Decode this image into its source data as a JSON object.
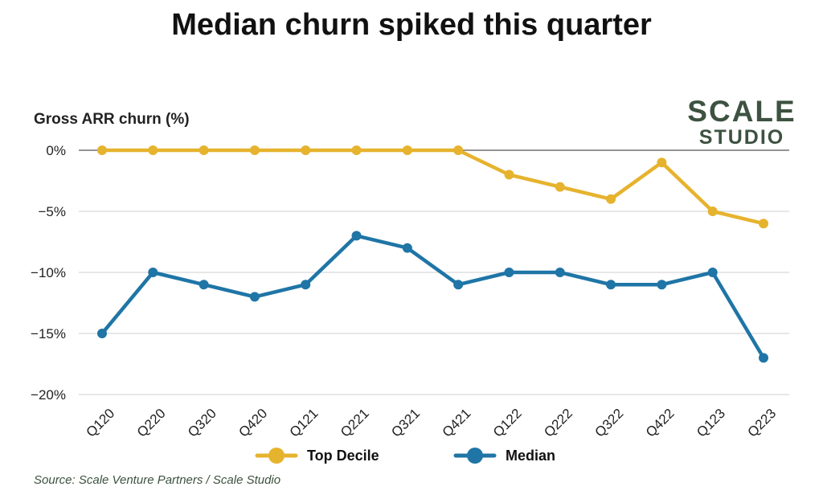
{
  "title": "Median churn spiked this quarter",
  "ylabel": "Gross ARR churn (%)",
  "logo": {
    "line1": "SCALE",
    "line2": "STUDIO"
  },
  "source": "Source: Scale Venture Partners / Scale Studio",
  "colors": {
    "top_decile": "#e6b32e",
    "median": "#1f75a6",
    "grid": "#cfcfcf",
    "zero": "#555555"
  },
  "chart_data": {
    "type": "line",
    "title": "Median churn spiked this quarter",
    "ylabel": "Gross ARR churn (%)",
    "xlabel": "",
    "categories": [
      "Q120",
      "Q220",
      "Q320",
      "Q420",
      "Q121",
      "Q221",
      "Q321",
      "Q421",
      "Q122",
      "Q222",
      "Q322",
      "Q422",
      "Q123",
      "Q223"
    ],
    "ylim": [
      -20,
      0
    ],
    "yticks": [
      0,
      -5,
      -10,
      -15,
      -20
    ],
    "ytick_labels": [
      "0%",
      "−5%",
      "−10%",
      "−15%",
      "−20%"
    ],
    "grid": true,
    "legend_position": "bottom",
    "series": [
      {
        "name": "Top Decile",
        "color": "#e6b32e",
        "values": [
          0,
          0,
          0,
          0,
          0,
          0,
          0,
          0,
          -2,
          -3,
          -4,
          -1,
          -5,
          -6
        ]
      },
      {
        "name": "Median",
        "color": "#1f75a6",
        "values": [
          -15,
          -10,
          -11,
          -12,
          -11,
          -7,
          -8,
          -11,
          -10,
          -10,
          -11,
          -11,
          -10,
          -17
        ]
      }
    ]
  }
}
